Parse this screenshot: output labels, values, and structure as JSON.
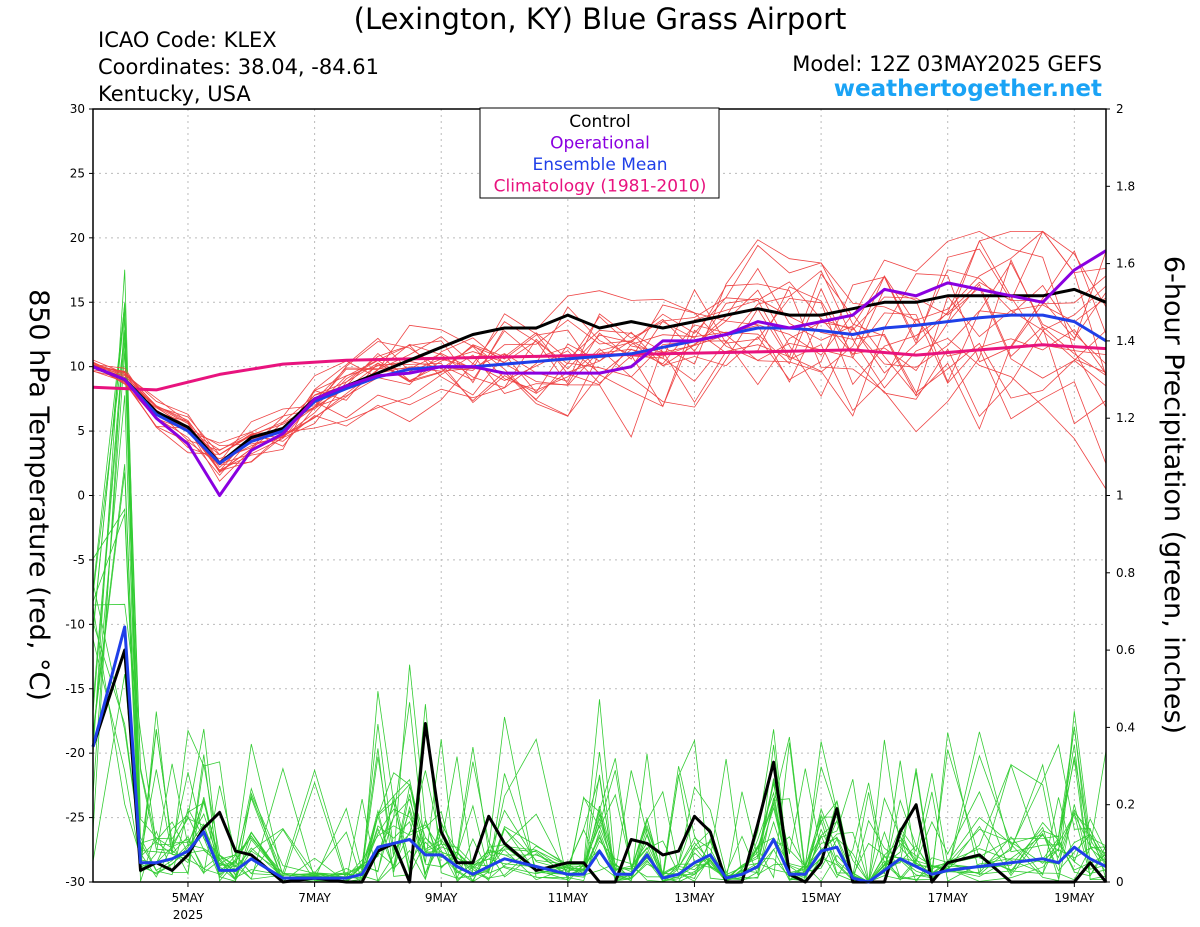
{
  "header": {
    "title": "(Lexington, KY) Blue Grass Airport",
    "icao": "ICAO Code: KLEX",
    "coordinates": "Coordinates: 38.04, -84.61",
    "region": "Kentucky, USA",
    "model": "Model: 12Z 03MAY2025 GEFS",
    "site": "weathertogether.net"
  },
  "colors": {
    "members_temp": "#ee4444",
    "members_precip": "#33cc33",
    "control": "#000000",
    "operational": "#8a00e0",
    "ensemble_mean": "#1f3fe8",
    "climatology": "#e8137e"
  },
  "chart_data": {
    "type": "line",
    "title": "(Lexington, KY) Blue Grass Airport",
    "ylabel": "850 hPa Temperature (red, °C)",
    "ylabel_right": "6-hour Precipitation (green, inches)",
    "ylim": [
      -30,
      30
    ],
    "ylim_right": [
      0,
      2
    ],
    "xlim": [
      3.5,
      19.5
    ],
    "y_ticks": [
      30,
      25,
      20,
      15,
      10,
      5,
      0,
      -5,
      -10,
      -15,
      -20,
      -25,
      -30
    ],
    "y_right_ticks": [
      "2",
      "1.8",
      "1.6",
      "1.4",
      "1.2",
      "1",
      "0.8",
      "0.6",
      "0.4",
      "0.2",
      "0"
    ],
    "x_ticks": [
      {
        "day": 5,
        "label": "5MAY",
        "sub": "2025"
      },
      {
        "day": 7,
        "label": "7MAY",
        "sub": ""
      },
      {
        "day": 9,
        "label": "9MAY",
        "sub": ""
      },
      {
        "day": 11,
        "label": "11MAY",
        "sub": ""
      },
      {
        "day": 13,
        "label": "13MAY",
        "sub": ""
      },
      {
        "day": 15,
        "label": "15MAY",
        "sub": ""
      },
      {
        "day": 17,
        "label": "17MAY",
        "sub": ""
      },
      {
        "day": 19,
        "label": "19MAY",
        "sub": ""
      }
    ],
    "grid": true,
    "legend": {
      "placement": "top-center",
      "entries": [
        {
          "name": "Control",
          "color": "#000000"
        },
        {
          "name": "Operational",
          "color": "#8a00e0"
        },
        {
          "name": "Ensemble Mean",
          "color": "#1f3fe8"
        },
        {
          "name": "Climatology (1981-2010)",
          "color": "#e8137e"
        }
      ]
    },
    "temperature_series": [
      {
        "name": "Control",
        "x": [
          3.5,
          4,
          4.5,
          5,
          5.5,
          6,
          6.5,
          7,
          7.5,
          8,
          8.5,
          9,
          9.5,
          10,
          10.5,
          11,
          11.5,
          12,
          12.5,
          13,
          13.5,
          14,
          14.5,
          15,
          15.5,
          16,
          16.5,
          17,
          17.5,
          18,
          18.5,
          19,
          19.5
        ],
        "y": [
          10,
          9,
          6.5,
          5.3,
          2.5,
          4.5,
          5.2,
          7.5,
          8.5,
          9.5,
          10.5,
          11.5,
          12.5,
          13,
          13,
          14,
          13,
          13.5,
          13,
          13.5,
          14,
          14.5,
          14,
          14,
          14.5,
          15,
          15,
          15.5,
          15.5,
          15.5,
          15.5,
          16,
          15
        ]
      },
      {
        "name": "Operational",
        "x": [
          3.5,
          4,
          4.5,
          5,
          5.5,
          6,
          6.5,
          7,
          7.5,
          8,
          8.5,
          9,
          9.5,
          10,
          10.5,
          11,
          11.5,
          12,
          12.5,
          13,
          13.5,
          14,
          14.5,
          15,
          15.5,
          16,
          16.5,
          17,
          17.5,
          18,
          18.5,
          19,
          19.5
        ],
        "y": [
          10,
          9,
          6,
          4,
          0,
          3.5,
          4.8,
          7.5,
          8.5,
          9.3,
          9.5,
          10,
          10,
          9.5,
          9.5,
          9.5,
          9.5,
          10,
          12,
          12,
          12.5,
          13.5,
          13,
          13.5,
          14,
          16,
          15.5,
          16.5,
          16,
          15.5,
          15,
          17.5,
          19
        ]
      },
      {
        "name": "Ensemble Mean",
        "x": [
          3.5,
          4,
          4.5,
          5,
          5.5,
          6,
          6.5,
          7,
          7.5,
          8,
          8.5,
          9,
          9.5,
          10,
          10.5,
          11,
          11.5,
          12,
          12.5,
          13,
          13.5,
          14,
          14.5,
          15,
          15.5,
          16,
          16.5,
          17,
          17.5,
          18,
          18.5,
          19,
          19.5
        ],
        "y": [
          10,
          9,
          6.3,
          5,
          2.5,
          4.2,
          5,
          7.3,
          8.3,
          9.2,
          9.8,
          10,
          10,
          10.2,
          10.4,
          10.6,
          10.8,
          11,
          11.5,
          12,
          12.5,
          13,
          13,
          12.8,
          12.5,
          13,
          13.2,
          13.5,
          13.8,
          14,
          14,
          13.5,
          12
        ]
      },
      {
        "name": "Climatology (1981-2010)",
        "x": [
          3.5,
          4.5,
          5.5,
          6.5,
          7.5,
          8.5,
          9.5,
          10.5,
          11.5,
          12.5,
          13.5,
          14.5,
          15.5,
          16.5,
          17.5,
          18.5,
          19.5
        ],
        "y": [
          8.4,
          8.2,
          9.4,
          10.2,
          10.5,
          10.6,
          10.7,
          10.8,
          10.9,
          11.0,
          11.1,
          11.2,
          11.3,
          10.9,
          11.3,
          11.7,
          11.4
        ]
      }
    ],
    "precipitation_series": [
      {
        "name": "Control",
        "x": [
          3.5,
          4,
          4.25,
          4.5,
          4.75,
          5,
          5.25,
          5.5,
          5.75,
          6,
          6.5,
          7,
          7.5,
          7.75,
          8,
          8.25,
          8.5,
          8.75,
          9,
          9.25,
          9.5,
          9.75,
          10,
          10.5,
          11,
          11.25,
          11.5,
          11.75,
          12,
          12.25,
          12.5,
          12.75,
          13,
          13.25,
          13.5,
          13.75,
          14,
          14.25,
          14.5,
          14.75,
          15,
          15.25,
          15.5,
          15.75,
          16,
          16.25,
          16.5,
          16.75,
          17,
          17.5,
          18,
          18.5,
          18.75,
          19,
          19.25,
          19.5
        ],
        "y": [
          0.35,
          0.6,
          0.03,
          0.05,
          0.03,
          0.07,
          0.14,
          0.18,
          0.08,
          0.07,
          0,
          0.01,
          0,
          0,
          0.08,
          0.1,
          0,
          0.41,
          0.13,
          0.05,
          0.05,
          0.17,
          0.1,
          0.03,
          0.05,
          0.05,
          0,
          0,
          0.11,
          0.1,
          0.07,
          0.08,
          0.17,
          0.13,
          0,
          0,
          0.15,
          0.31,
          0.02,
          0,
          0.05,
          0.19,
          0,
          0,
          0,
          0.13,
          0.2,
          0,
          0.05,
          0.07,
          0,
          0,
          0,
          0,
          0.05,
          0
        ]
      },
      {
        "name": "Ensemble Mean",
        "x": [
          3.5,
          4,
          4.25,
          4.5,
          4.75,
          5,
          5.25,
          5.5,
          5.75,
          6,
          6.5,
          7,
          7.5,
          7.75,
          8,
          8.25,
          8.5,
          8.75,
          9,
          9.25,
          9.5,
          9.75,
          10,
          10.5,
          11,
          11.25,
          11.5,
          11.75,
          12,
          12.25,
          12.5,
          12.75,
          13,
          13.25,
          13.5,
          13.75,
          14,
          14.25,
          14.5,
          14.75,
          15,
          15.25,
          15.5,
          15.75,
          16,
          16.25,
          16.5,
          16.75,
          17,
          17.5,
          18,
          18.5,
          18.75,
          19,
          19.25,
          19.5
        ],
        "y": [
          0.35,
          0.66,
          0.05,
          0.05,
          0.06,
          0.08,
          0.13,
          0.03,
          0.03,
          0.06,
          0.01,
          0.01,
          0.01,
          0.02,
          0.09,
          0.1,
          0.11,
          0.07,
          0.07,
          0.04,
          0.02,
          0.04,
          0.06,
          0.04,
          0.02,
          0.02,
          0.08,
          0.02,
          0.02,
          0.07,
          0.01,
          0.02,
          0.05,
          0.07,
          0.01,
          0.02,
          0.04,
          0.11,
          0.02,
          0.02,
          0.08,
          0.09,
          0.01,
          0,
          0.03,
          0.06,
          0.04,
          0.02,
          0.03,
          0.04,
          0.05,
          0.06,
          0.05,
          0.09,
          0.06,
          0.04
        ]
      }
    ]
  }
}
